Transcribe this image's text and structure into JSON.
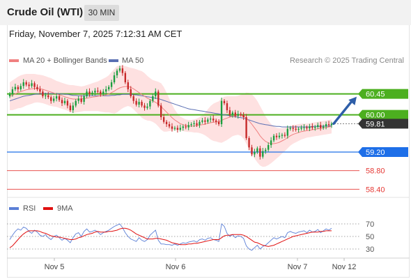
{
  "header": {
    "title": "Crude Oil (WTI)",
    "timeframe": "30 MIN",
    "datetime": "Friday, November 7, 2025 7:12:31 AM CET"
  },
  "legend": {
    "ma20": "MA 20 + Bollinger Bands",
    "ma50": "MA 50",
    "copyright": "Research © 2025 Trading Central"
  },
  "rsi_legend": {
    "rsi": "RSI",
    "ma": "9MA"
  },
  "colors": {
    "up": "#1a9e3f",
    "down": "#c62828",
    "ma20": "#f08080",
    "ma50": "#5a6fb3",
    "green_level": "#4caf1f",
    "blue_level": "#1e6fe8",
    "red_level": "#e53935",
    "arrow": "#2e5ea8",
    "band": "#fdd7d7",
    "rsi": "#5b7fd6",
    "rsi_ma": "#e01010"
  },
  "chart_data": [
    {
      "type": "candlestick",
      "title": "Crude Oil (WTI)",
      "timeframe": "30 MIN",
      "x_ticks": [
        "Nov 5",
        "Nov 6",
        "Nov 7",
        "Nov 12"
      ],
      "ylim": [
        58.3,
        61.0
      ],
      "price_labels": [
        {
          "label": "60.45",
          "value": 60.45,
          "style": "green"
        },
        {
          "label": "60.00",
          "value": 60.0,
          "style": "green"
        },
        {
          "label": "59.81",
          "value": 59.81,
          "style": "current"
        },
        {
          "label": "59.20",
          "value": 59.2,
          "style": "blue"
        },
        {
          "label": "58.80",
          "value": 58.8,
          "style": "red"
        },
        {
          "label": "58.40",
          "value": 58.4,
          "style": "red"
        }
      ],
      "levels": [
        {
          "value": 60.45,
          "style": "green"
        },
        {
          "value": 60.0,
          "style": "green"
        },
        {
          "value": 59.2,
          "style": "blue"
        },
        {
          "value": 58.8,
          "style": "red"
        },
        {
          "value": 58.4,
          "style": "red"
        }
      ],
      "close": [
        60.45,
        60.55,
        60.6,
        60.55,
        60.62,
        60.7,
        60.65,
        60.62,
        60.68,
        60.6,
        60.55,
        60.5,
        60.4,
        60.42,
        60.38,
        60.3,
        60.35,
        60.4,
        60.32,
        60.25,
        60.3,
        60.2,
        60.1,
        60.2,
        60.3,
        60.35,
        60.28,
        60.4,
        60.5,
        60.45,
        60.48,
        60.52,
        60.5,
        60.45,
        60.5,
        60.55,
        60.6,
        60.7,
        60.85,
        60.95,
        61.0,
        60.9,
        60.7,
        60.55,
        60.4,
        60.3,
        60.22,
        60.28,
        60.2,
        60.15,
        60.18,
        60.3,
        60.4,
        60.5,
        60.2,
        59.95,
        59.85,
        59.8,
        59.75,
        59.7,
        59.72,
        59.68,
        59.72,
        59.75,
        59.73,
        59.78,
        59.8,
        59.82,
        59.78,
        59.85,
        59.88,
        59.85,
        59.9,
        59.92,
        59.88,
        59.85,
        59.8,
        60.3,
        60.25,
        60.1,
        60.0,
        60.05,
        59.98,
        60.02,
        60.0,
        59.95,
        59.5,
        59.3,
        59.15,
        59.2,
        59.28,
        59.1,
        59.22,
        59.25,
        59.35,
        59.45,
        59.55,
        59.52,
        59.55,
        59.57,
        59.55,
        59.7,
        59.72,
        59.7,
        59.68,
        59.7,
        59.72,
        59.73,
        59.71,
        59.75,
        59.72,
        59.74,
        59.78,
        59.72,
        59.75,
        59.8,
        59.78,
        59.81
      ],
      "ma20": [
        60.4,
        60.42,
        60.45,
        60.48,
        60.5,
        60.52,
        60.54,
        60.55,
        60.56,
        60.57,
        60.57,
        60.56,
        60.55,
        60.53,
        60.51,
        60.49,
        60.47,
        60.45,
        60.43,
        60.41,
        60.39,
        60.37,
        60.35,
        60.34,
        60.34,
        60.34,
        60.34,
        60.35,
        60.36,
        60.37,
        60.38,
        60.39,
        60.4,
        60.41,
        60.42,
        60.43,
        60.45,
        60.48,
        60.51,
        60.55,
        60.58,
        60.6,
        60.61,
        60.61,
        60.59,
        60.56,
        60.52,
        60.48,
        60.44,
        60.4,
        60.36,
        60.33,
        60.3,
        60.27,
        60.23,
        60.18,
        60.12,
        60.06,
        60.0,
        59.94,
        59.89,
        59.85,
        59.81,
        59.79,
        59.77,
        59.76,
        59.76,
        59.76,
        59.77,
        59.78,
        59.79,
        59.8,
        59.82,
        59.83,
        59.84,
        59.85,
        59.85,
        59.88,
        59.91,
        59.93,
        59.95,
        59.97,
        59.98,
        59.99,
        59.99,
        59.97,
        59.93,
        59.87,
        59.8,
        59.72,
        59.64,
        59.55,
        59.48,
        59.43,
        59.4,
        59.38,
        59.38,
        59.39,
        59.41,
        59.44,
        59.47,
        59.51,
        59.55,
        59.58,
        59.6,
        59.62,
        59.64,
        59.65,
        59.66,
        59.67,
        59.68,
        59.69,
        59.7,
        59.71,
        59.72,
        59.73,
        59.74,
        59.75
      ],
      "ma50": [
        60.3,
        60.32,
        60.34,
        60.36,
        60.38,
        60.4,
        60.41,
        60.42,
        60.43,
        60.44,
        60.45,
        60.45,
        60.46,
        60.46,
        60.46,
        60.46,
        60.46,
        60.46,
        60.45,
        60.45,
        60.44,
        60.44,
        60.43,
        60.42,
        60.42,
        60.41,
        60.41,
        60.41,
        60.41,
        60.41,
        60.41,
        60.41,
        60.41,
        60.41,
        60.41,
        60.41,
        60.41,
        60.42,
        60.42,
        60.43,
        60.43,
        60.44,
        60.44,
        60.44,
        60.44,
        60.43,
        60.43,
        60.42,
        60.41,
        60.4,
        60.39,
        60.38,
        60.37,
        60.36,
        60.35,
        60.33,
        60.31,
        60.29,
        60.27,
        60.25,
        60.23,
        60.21,
        60.19,
        60.17,
        60.15,
        60.13,
        60.12,
        60.11,
        60.1,
        60.09,
        60.08,
        60.07,
        60.06,
        60.05,
        60.04,
        60.03,
        60.02,
        60.01,
        60.0,
        59.99,
        59.98,
        59.97,
        59.96,
        59.95,
        59.94,
        59.93,
        59.91,
        59.89,
        59.87,
        59.85,
        59.83,
        59.81,
        59.8,
        59.79,
        59.78,
        59.77,
        59.76,
        59.75,
        59.75,
        59.74,
        59.74,
        59.74,
        59.74,
        59.74,
        59.74,
        59.74,
        59.74,
        59.74,
        59.74,
        59.74,
        59.75,
        59.75,
        59.75,
        59.75,
        59.76,
        59.76,
        59.76,
        59.77
      ],
      "band_width": [
        0.3,
        0.32,
        0.33,
        0.34,
        0.35,
        0.35,
        0.34,
        0.33,
        0.32,
        0.31,
        0.3,
        0.3,
        0.3,
        0.3,
        0.3,
        0.3,
        0.29,
        0.28,
        0.28,
        0.28,
        0.28,
        0.28,
        0.29,
        0.3,
        0.29,
        0.28,
        0.27,
        0.27,
        0.28,
        0.29,
        0.3,
        0.31,
        0.32,
        0.34,
        0.36,
        0.38,
        0.4,
        0.44,
        0.48,
        0.5,
        0.48,
        0.46,
        0.44,
        0.42,
        0.42,
        0.44,
        0.46,
        0.48,
        0.5,
        0.5,
        0.48,
        0.46,
        0.45,
        0.46,
        0.48,
        0.5,
        0.48,
        0.42,
        0.35,
        0.28,
        0.22,
        0.18,
        0.15,
        0.14,
        0.13,
        0.13,
        0.13,
        0.14,
        0.15,
        0.17,
        0.2,
        0.24,
        0.3,
        0.36,
        0.4,
        0.42,
        0.44,
        0.48,
        0.48,
        0.47,
        0.45,
        0.43,
        0.42,
        0.42,
        0.44,
        0.48,
        0.55,
        0.6,
        0.64,
        0.66,
        0.66,
        0.64,
        0.6,
        0.54,
        0.48,
        0.42,
        0.37,
        0.33,
        0.3,
        0.27,
        0.25,
        0.23,
        0.21,
        0.2,
        0.19,
        0.18,
        0.17,
        0.16,
        0.15,
        0.15,
        0.15,
        0.15,
        0.15,
        0.15,
        0.15,
        0.15,
        0.15,
        0.15
      ],
      "projection": {
        "from": 59.81,
        "to": 60.45
      }
    },
    {
      "type": "line",
      "name": "RSI",
      "ylim": [
        20,
        80
      ],
      "y_ticks": [
        70,
        50,
        30
      ],
      "reference_lines": [
        70,
        50,
        30
      ],
      "rsi": [
        45,
        52,
        58,
        62,
        60,
        65,
        63,
        58,
        55,
        60,
        57,
        52,
        50,
        53,
        48,
        45,
        50,
        52,
        48,
        44,
        47,
        44,
        40,
        48,
        54,
        56,
        50,
        58,
        62,
        57,
        58,
        60,
        57,
        53,
        56,
        58,
        60,
        63,
        66,
        68,
        70,
        64,
        56,
        50,
        46,
        44,
        42,
        48,
        44,
        42,
        45,
        52,
        56,
        60,
        44,
        38,
        38,
        37,
        37,
        36,
        38,
        36,
        38,
        40,
        39,
        41,
        42,
        43,
        41,
        45,
        46,
        44,
        47,
        48,
        45,
        44,
        42,
        70,
        66,
        55,
        50,
        53,
        48,
        51,
        50,
        47,
        35,
        30,
        28,
        32,
        36,
        30,
        34,
        36,
        40,
        44,
        48,
        46,
        48,
        50,
        48,
        56,
        58,
        56,
        55,
        57,
        58,
        59,
        56,
        60,
        57,
        58,
        61,
        56,
        59,
        62,
        60,
        63
      ],
      "rsi_9ma": [
        32,
        35,
        40,
        45,
        50,
        54,
        57,
        59,
        59,
        59,
        59,
        58,
        56,
        55,
        53,
        51,
        50,
        49,
        49,
        48,
        47,
        46,
        45,
        45,
        46,
        48,
        49,
        51,
        53,
        54,
        55,
        57,
        58,
        57,
        57,
        57,
        58,
        58,
        59,
        60,
        62,
        63,
        63,
        62,
        60,
        57,
        54,
        52,
        50,
        48,
        46,
        46,
        46,
        47,
        47,
        46,
        45,
        44,
        42,
        40,
        39,
        38,
        37,
        37,
        37,
        38,
        38,
        39,
        39,
        40,
        41,
        42,
        43,
        44,
        45,
        45,
        45,
        48,
        51,
        52,
        52,
        53,
        53,
        53,
        53,
        52,
        50,
        47,
        44,
        41,
        40,
        38,
        36,
        35,
        34,
        35,
        36,
        38,
        40,
        42,
        44,
        46,
        48,
        50,
        51,
        52,
        53,
        54,
        55,
        56,
        57,
        57,
        57,
        58,
        58,
        59,
        59,
        59
      ]
    }
  ]
}
